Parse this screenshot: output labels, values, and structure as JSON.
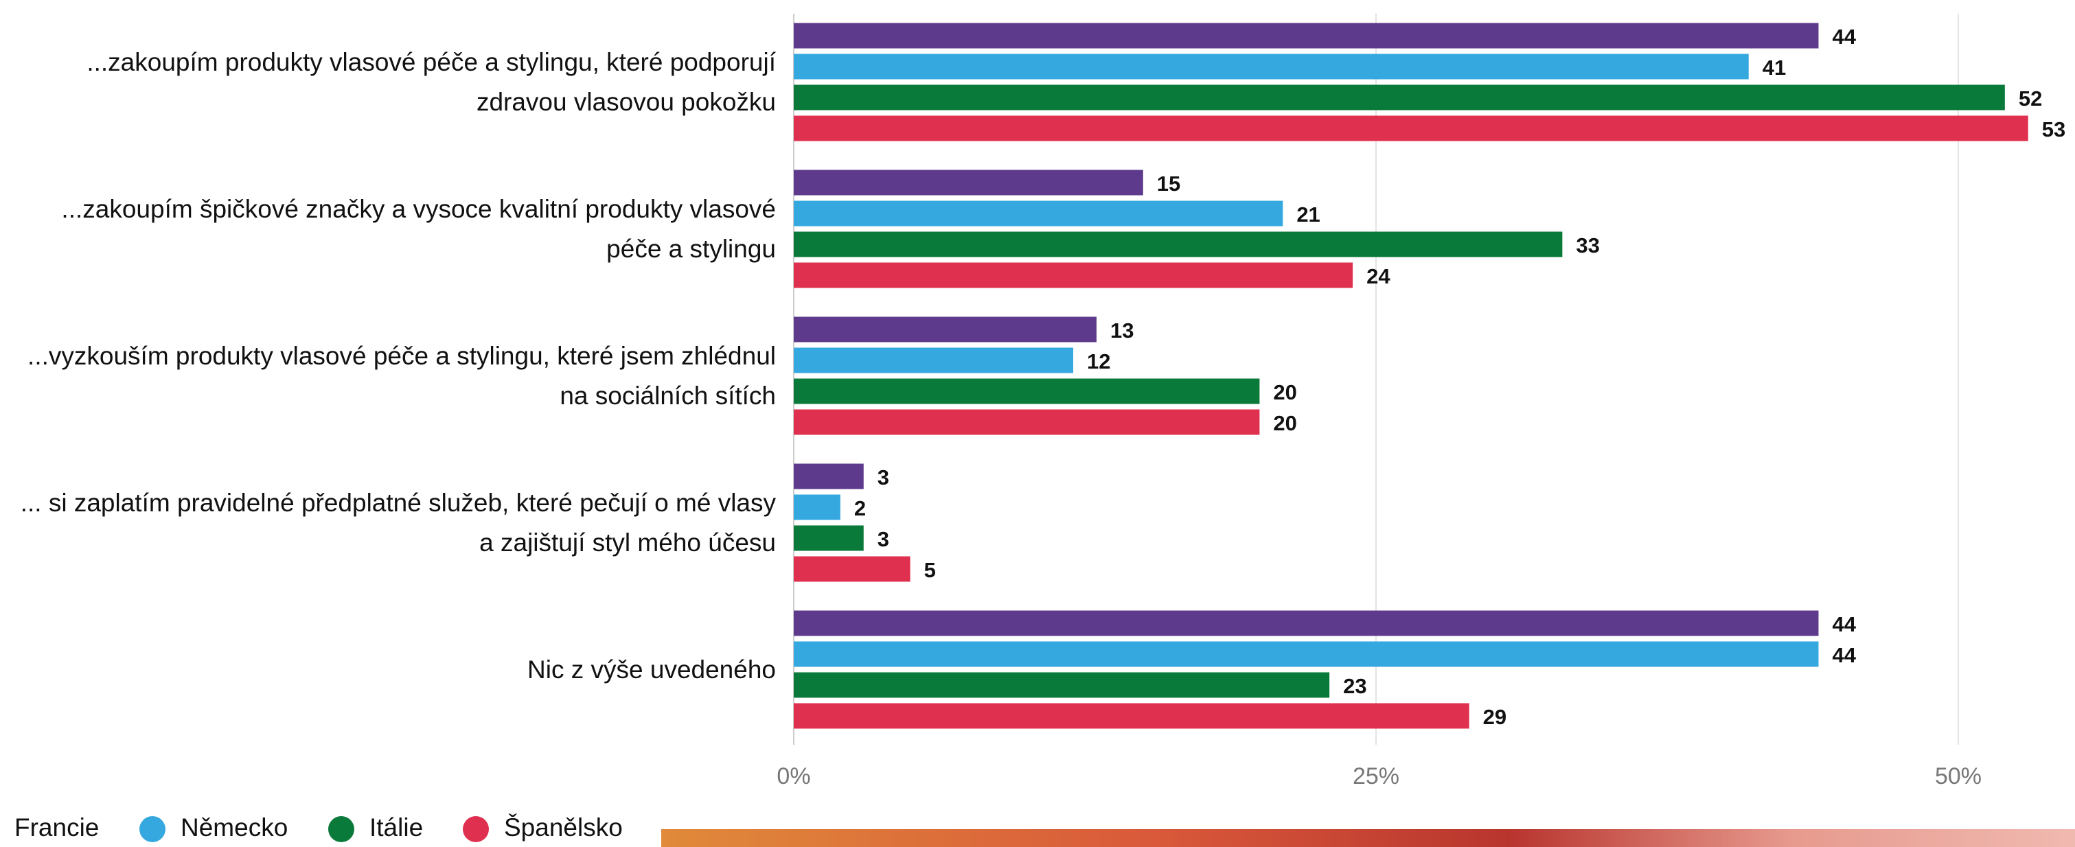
{
  "chart_data": {
    "type": "bar",
    "orientation": "horizontal",
    "categories": [
      "...zakoupím produkty vlasové péče a stylingu, které podporují zdravou vlasovou pokožku",
      "...zakoupím špičkové značky a vysoce kvalitní produkty vlasové péče a stylingu",
      "...vyzkouším produkty vlasové péče a stylingu, které jsem zhlédnul na sociálních sítích",
      "... si zaplatím pravidelné předplatné služeb, které pečují o mé vlasy a zajištují styl mého účesu",
      "Nic z výše uvedeného"
    ],
    "series": [
      {
        "name": "Francie",
        "color": "#5e3a8c",
        "values": [
          44,
          15,
          13,
          3,
          44
        ]
      },
      {
        "name": "Německo",
        "color": "#35a8e0",
        "values": [
          41,
          21,
          12,
          2,
          44
        ]
      },
      {
        "name": "Itálie",
        "color": "#0a7a3a",
        "values": [
          52,
          33,
          20,
          3,
          23
        ]
      },
      {
        "name": "Španělsko",
        "color": "#e0304f",
        "values": [
          53,
          24,
          20,
          5,
          29
        ]
      }
    ],
    "xlim": [
      0,
      55
    ],
    "xticks": [
      {
        "value": 0,
        "label": "0%"
      },
      {
        "value": 25,
        "label": "25%"
      },
      {
        "value": 50,
        "label": "50%"
      }
    ],
    "grid": true,
    "legend": "bottom"
  }
}
